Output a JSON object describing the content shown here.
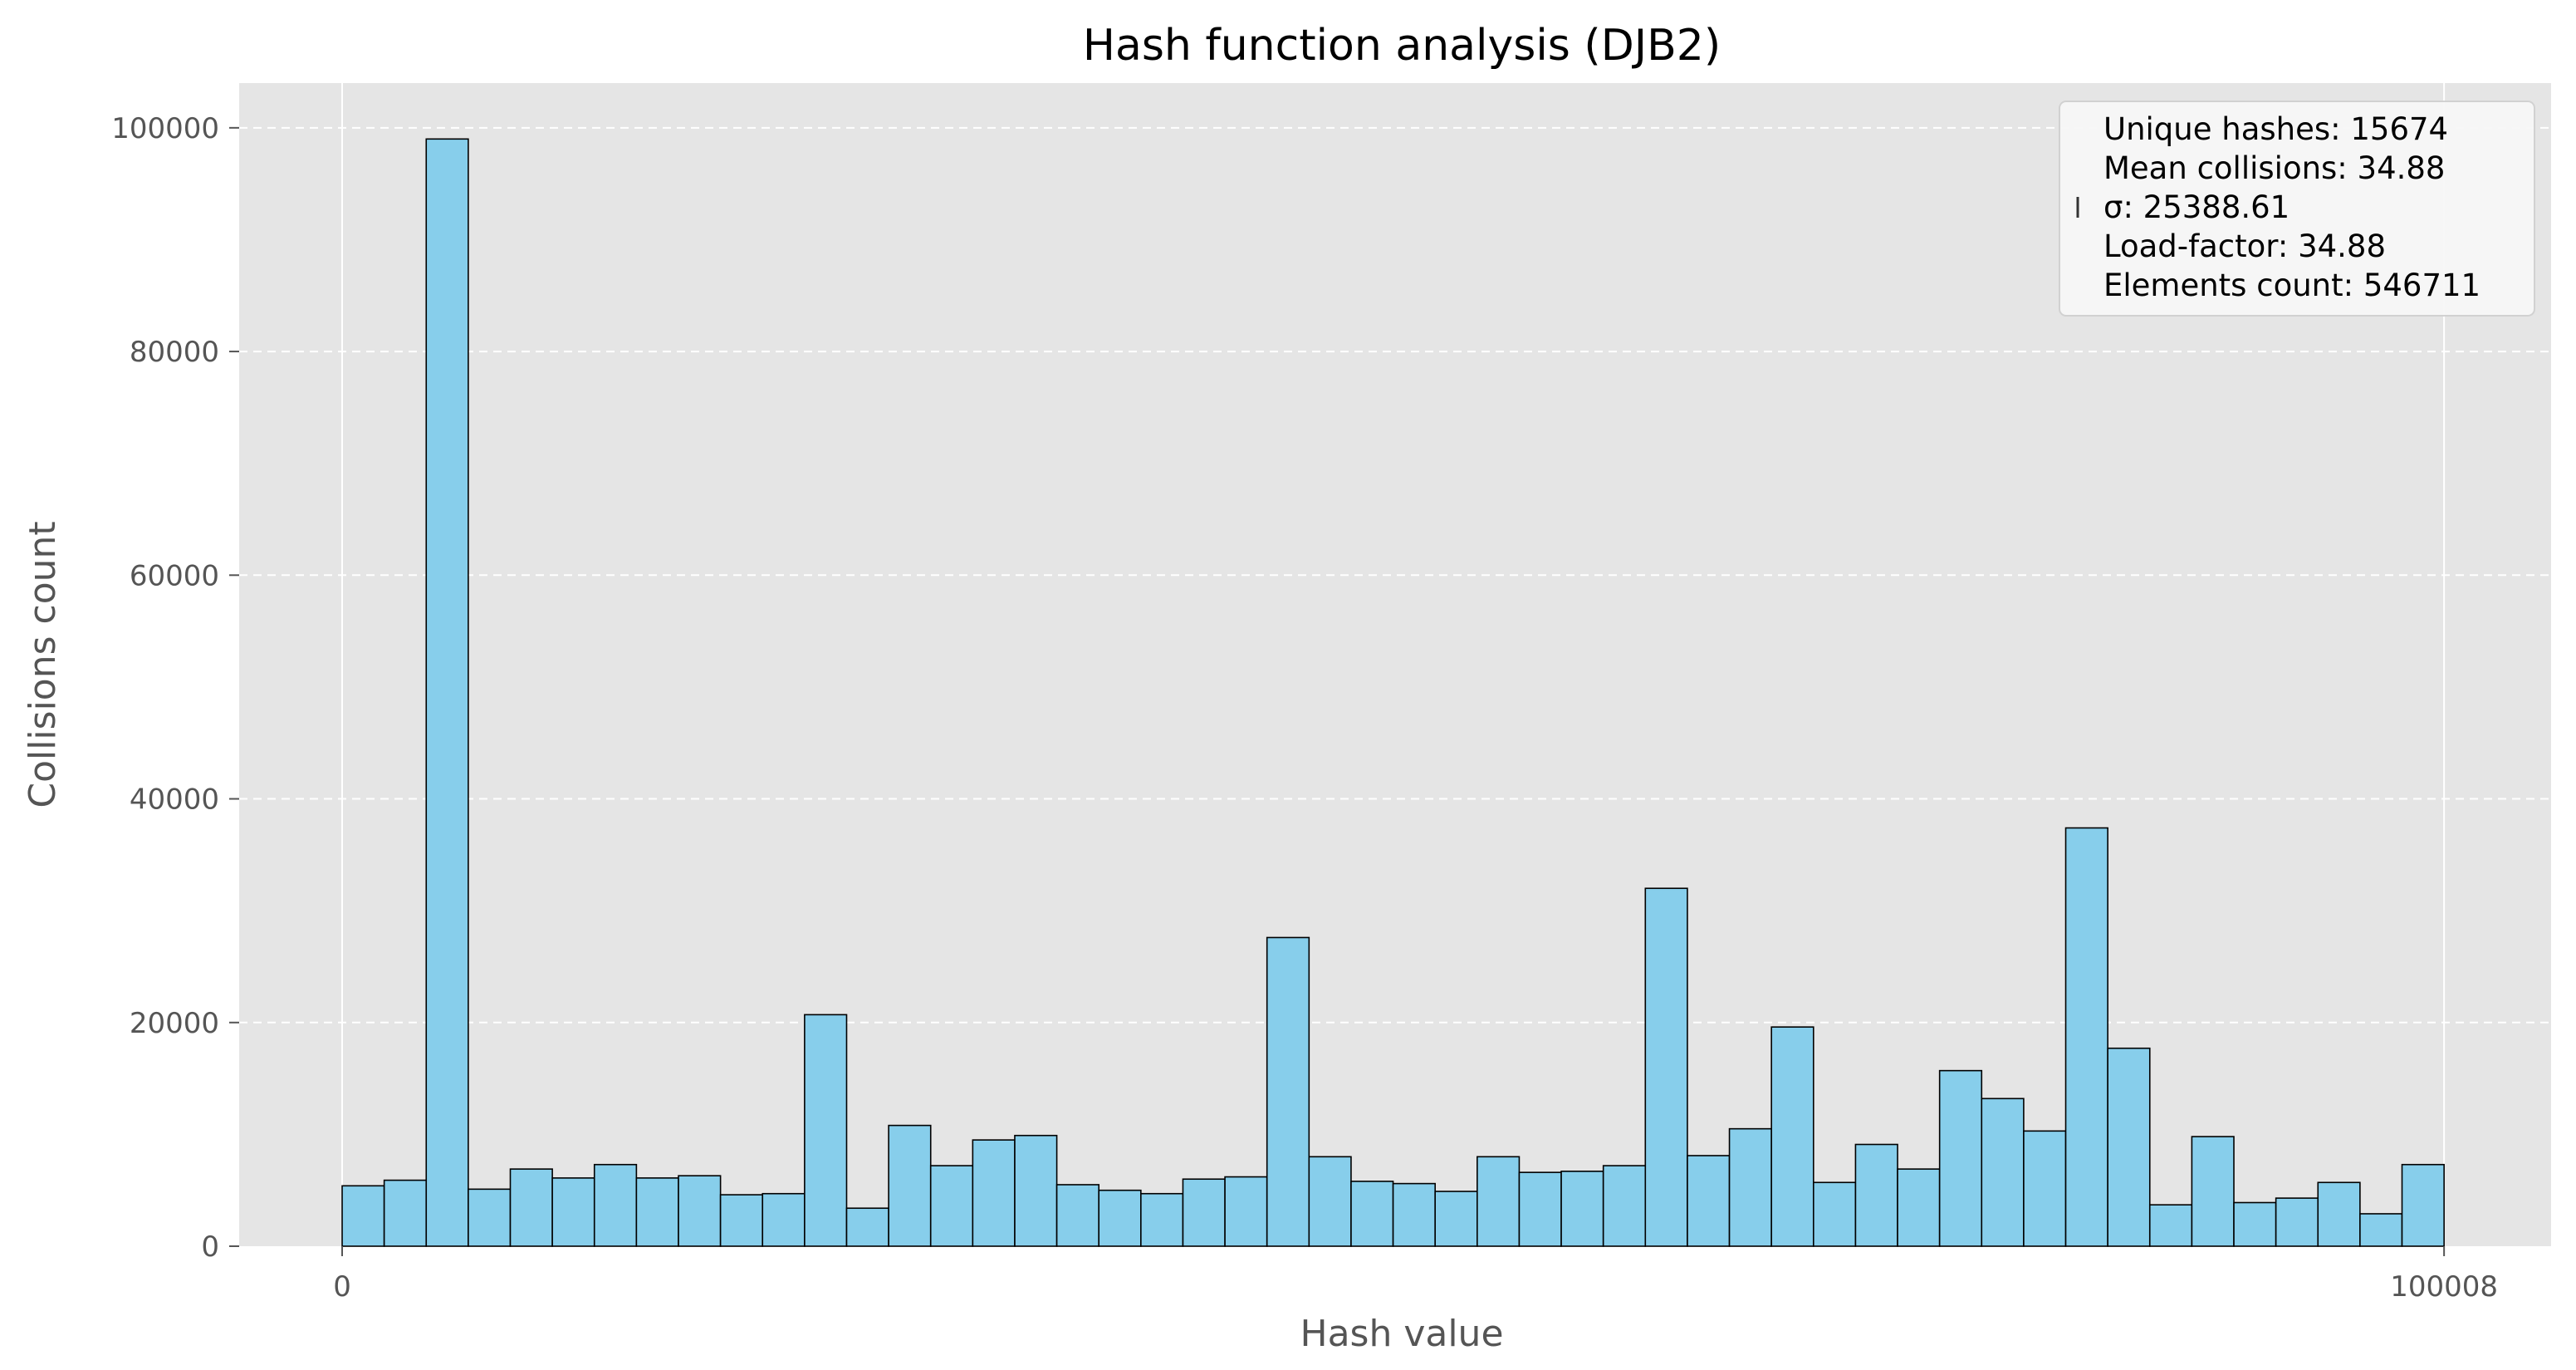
{
  "chart_data": {
    "type": "bar",
    "title": "Hash function analysis (DJB2)",
    "xlabel": "Hash value",
    "ylabel": "Collisions count",
    "x_range": [
      0,
      100008
    ],
    "xlim": [
      -4900,
      105100
    ],
    "ylim": [
      0,
      104000
    ],
    "x_ticks": [
      0,
      100008
    ],
    "y_ticks": [
      0,
      20000,
      40000,
      60000,
      80000,
      100000
    ],
    "grid": true,
    "bar_color": "#87ceeb",
    "bar_edge_color": "#000000",
    "background_color": "#e5e5e5",
    "values": [
      5400,
      5900,
      99000,
      5100,
      6900,
      6100,
      7300,
      6100,
      6300,
      4600,
      4700,
      20700,
      3400,
      10800,
      7200,
      9500,
      9900,
      5500,
      5000,
      4700,
      6000,
      6200,
      27600,
      8000,
      5800,
      5600,
      4900,
      8000,
      6600,
      6700,
      7200,
      32000,
      8100,
      10500,
      19600,
      5700,
      9100,
      6900,
      15700,
      13200,
      10300,
      37400,
      17700,
      3700,
      9800,
      3900,
      4300,
      5700,
      2900,
      7300
    ],
    "stats_box": {
      "position": "top-right",
      "lines": [
        "Unique hashes: 15674",
        "Mean collisions: 34.88",
        "σ: 25388.61",
        "Load-factor: 34.88",
        "Elements count: 546711"
      ]
    }
  }
}
